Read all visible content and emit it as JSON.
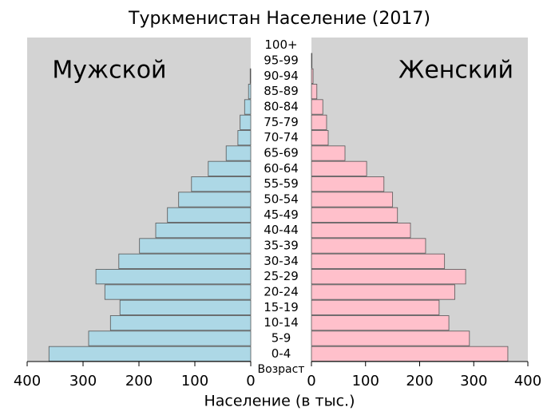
{
  "chart_data": {
    "type": "pyramid",
    "title": "Туркменистан Население (2017)",
    "x_label": "Население (в тыс.)",
    "category_label": "Возраст",
    "categories": [
      "0-4",
      "5-9",
      "10-14",
      "15-19",
      "20-24",
      "25-29",
      "30-34",
      "35-39",
      "40-44",
      "45-49",
      "50-54",
      "55-59",
      "60-64",
      "65-69",
      "70-74",
      "75-79",
      "80-84",
      "85-89",
      "90-94",
      "95-99",
      "100+"
    ],
    "series": [
      {
        "name": "Мужской",
        "color": "#add8e6",
        "values": [
          361,
          290,
          251,
          234,
          261,
          277,
          236,
          199,
          170,
          149,
          129,
          106,
          76,
          44,
          23,
          19,
          11,
          4,
          1,
          0,
          0
        ]
      },
      {
        "name": "Женский",
        "color": "#ffc0cb",
        "values": [
          363,
          292,
          254,
          236,
          265,
          285,
          246,
          211,
          183,
          159,
          150,
          134,
          102,
          62,
          31,
          28,
          21,
          10,
          3,
          1,
          0
        ]
      }
    ],
    "xlim": [
      0,
      400
    ],
    "xticks": [
      0,
      100,
      200,
      300,
      400
    ],
    "background": "#d3d3d3"
  }
}
